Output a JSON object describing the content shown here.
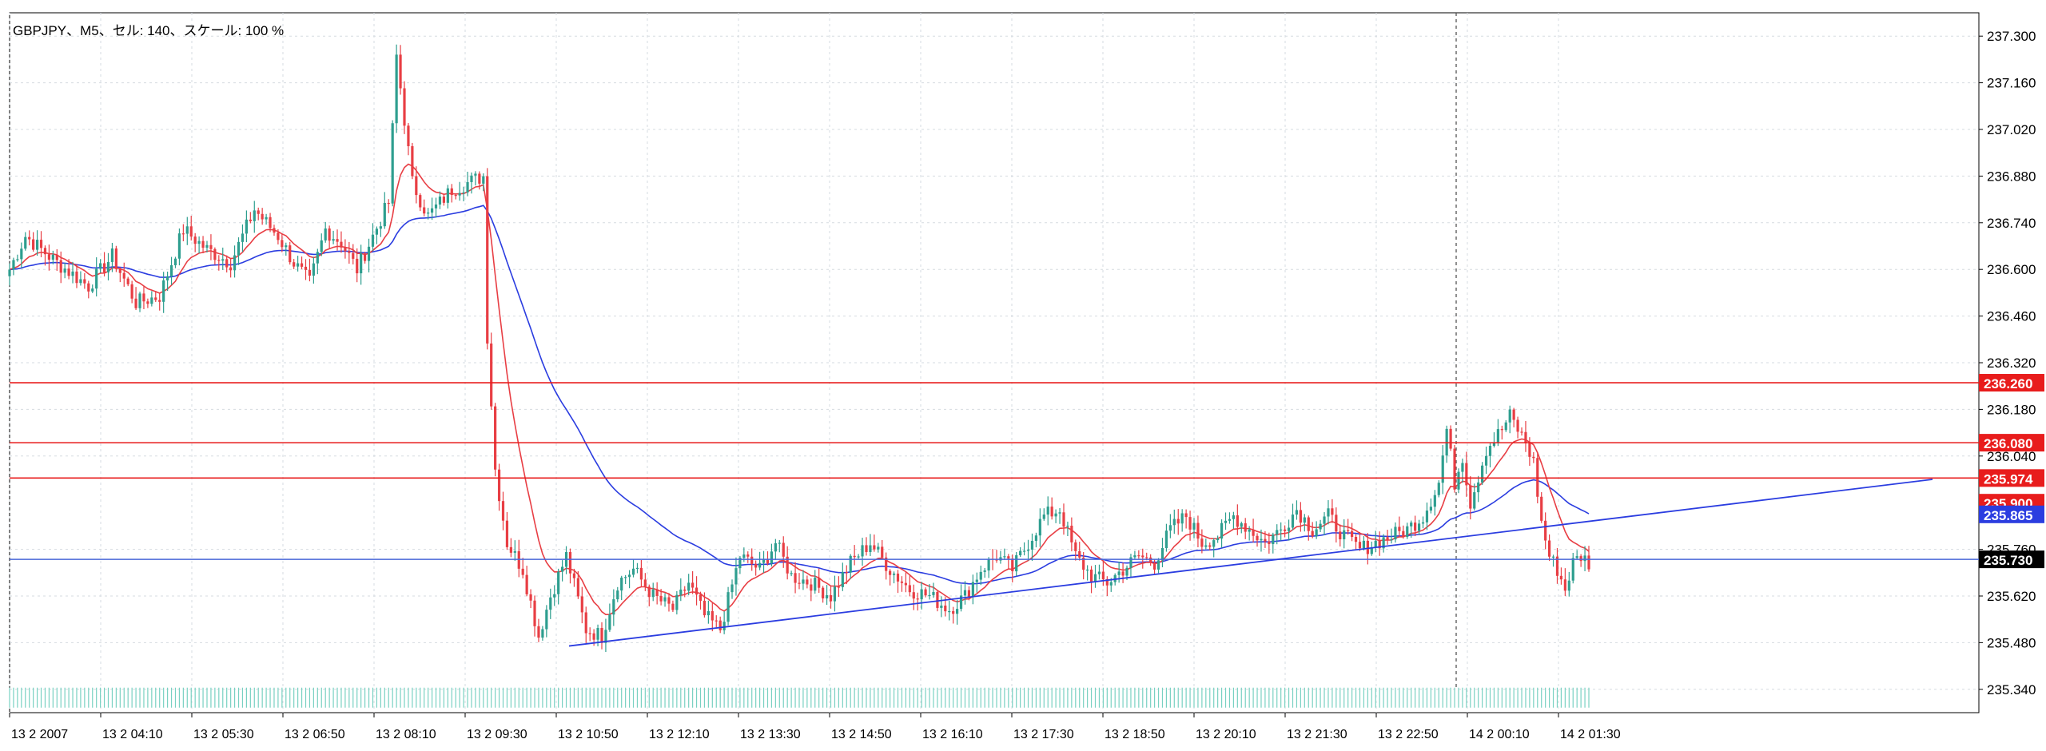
{
  "window": {
    "title": "GBPJPY、M5、セル: 140、スケール: 100 %"
  },
  "colors": {
    "background": "#ffffff",
    "grid": "#d6dbe0",
    "frame": "#000000",
    "bull": "#2e9e8f",
    "bear": "#e83e44",
    "ma_fast": "#e83e44",
    "ma_slow": "#2b3de0",
    "level_line": "#e81c1c",
    "trendline": "#2b3de0",
    "bid_line": "#4a67d8",
    "volume": "#79d1c2"
  },
  "chart_data": {
    "type": "candlestick",
    "symbol": "GBPJPY",
    "timeframe": "M5",
    "ylim": [
      235.27,
      237.37
    ],
    "yticks": [
      "237.300",
      "237.160",
      "237.020",
      "236.880",
      "236.740",
      "236.600",
      "236.460",
      "236.320",
      "236.180",
      "236.040",
      "235.760",
      "235.620",
      "235.480",
      "235.340"
    ],
    "xticks": [
      "13 2 2007",
      "13 2 04:10",
      "13 2 05:30",
      "13 2 06:50",
      "13 2 08:10",
      "13 2 09:30",
      "13 2 10:50",
      "13 2 12:10",
      "13 2 13:30",
      "13 2 14:50",
      "13 2 16:10",
      "13 2 17:30",
      "13 2 18:50",
      "13 2 20:10",
      "13 2 21:30",
      "13 2 22:50",
      "14 2 00:10",
      "14 2 01:30"
    ],
    "price_labels": [
      {
        "text": "236.260",
        "value": 236.26,
        "kind": "level"
      },
      {
        "text": "236.080",
        "value": 236.08,
        "kind": "level"
      },
      {
        "text": "235.974",
        "value": 235.974,
        "kind": "level"
      },
      {
        "text": "235.900",
        "value": 235.9,
        "kind": "level"
      },
      {
        "text": "235.865",
        "value": 235.865,
        "kind": "ma"
      },
      {
        "text": "235.730",
        "value": 235.73,
        "kind": "bid"
      }
    ],
    "horizontal_levels": [
      236.26,
      236.08,
      235.974
    ],
    "bid": 235.73,
    "trendline": {
      "from": [
        "13 2 10:50",
        235.47
      ],
      "to": [
        "14 2 04:00",
        235.97
      ]
    },
    "candle_waypoints": [
      [
        0,
        236.6
      ],
      [
        4,
        236.7
      ],
      [
        12,
        236.62
      ],
      [
        20,
        236.55
      ],
      [
        26,
        236.64
      ],
      [
        32,
        236.5
      ],
      [
        38,
        236.52
      ],
      [
        44,
        236.72
      ],
      [
        50,
        236.66
      ],
      [
        56,
        236.62
      ],
      [
        62,
        236.78
      ],
      [
        68,
        236.7
      ],
      [
        72,
        236.62
      ],
      [
        76,
        236.56
      ],
      [
        80,
        236.72
      ],
      [
        84,
        236.68
      ],
      [
        88,
        236.6
      ],
      [
        92,
        236.7
      ],
      [
        96,
        236.8
      ],
      [
        98,
        237.24
      ],
      [
        100,
        237.05
      ],
      [
        102,
        236.86
      ],
      [
        106,
        236.76
      ],
      [
        112,
        236.84
      ],
      [
        116,
        236.86
      ],
      [
        120,
        236.88
      ],
      [
        121,
        236.4
      ],
      [
        123,
        236.0
      ],
      [
        126,
        235.78
      ],
      [
        130,
        235.7
      ],
      [
        134,
        235.5
      ],
      [
        137,
        235.62
      ],
      [
        141,
        235.74
      ],
      [
        146,
        235.52
      ],
      [
        150,
        235.5
      ],
      [
        154,
        235.66
      ],
      [
        158,
        235.7
      ],
      [
        163,
        235.62
      ],
      [
        168,
        235.58
      ],
      [
        172,
        235.66
      ],
      [
        176,
        235.56
      ],
      [
        180,
        235.52
      ],
      [
        185,
        235.74
      ],
      [
        190,
        235.7
      ],
      [
        194,
        235.78
      ],
      [
        198,
        235.68
      ],
      [
        203,
        235.66
      ],
      [
        208,
        235.62
      ],
      [
        213,
        235.72
      ],
      [
        218,
        235.78
      ],
      [
        223,
        235.7
      ],
      [
        228,
        235.64
      ],
      [
        233,
        235.62
      ],
      [
        238,
        235.58
      ],
      [
        242,
        235.62
      ],
      [
        246,
        235.7
      ],
      [
        250,
        235.74
      ],
      [
        254,
        235.7
      ],
      [
        258,
        235.78
      ],
      [
        262,
        235.86
      ],
      [
        266,
        235.88
      ],
      [
        270,
        235.74
      ],
      [
        274,
        235.68
      ],
      [
        278,
        235.66
      ],
      [
        282,
        235.7
      ],
      [
        286,
        235.74
      ],
      [
        290,
        235.72
      ],
      [
        294,
        235.82
      ],
      [
        298,
        235.86
      ],
      [
        302,
        235.78
      ],
      [
        306,
        235.8
      ],
      [
        310,
        235.86
      ],
      [
        314,
        235.82
      ],
      [
        318,
        235.78
      ],
      [
        322,
        235.82
      ],
      [
        326,
        235.88
      ],
      [
        330,
        235.82
      ],
      [
        334,
        235.86
      ],
      [
        338,
        235.8
      ],
      [
        342,
        235.76
      ],
      [
        346,
        235.78
      ],
      [
        350,
        235.8
      ],
      [
        354,
        235.82
      ],
      [
        358,
        235.86
      ],
      [
        362,
        235.96
      ],
      [
        364,
        236.12
      ],
      [
        366,
        235.96
      ],
      [
        368,
        236.04
      ],
      [
        370,
        235.9
      ],
      [
        372,
        235.98
      ],
      [
        374,
        236.06
      ],
      [
        378,
        236.12
      ],
      [
        380,
        236.16
      ],
      [
        382,
        236.12
      ],
      [
        384,
        236.08
      ],
      [
        386,
        236.02
      ],
      [
        388,
        235.84
      ],
      [
        390,
        235.74
      ],
      [
        392,
        235.7
      ],
      [
        394,
        235.64
      ],
      [
        396,
        235.72
      ],
      [
        398,
        235.74
      ],
      [
        400,
        235.72
      ]
    ],
    "volume_range": [
      235.285,
      235.345
    ]
  }
}
